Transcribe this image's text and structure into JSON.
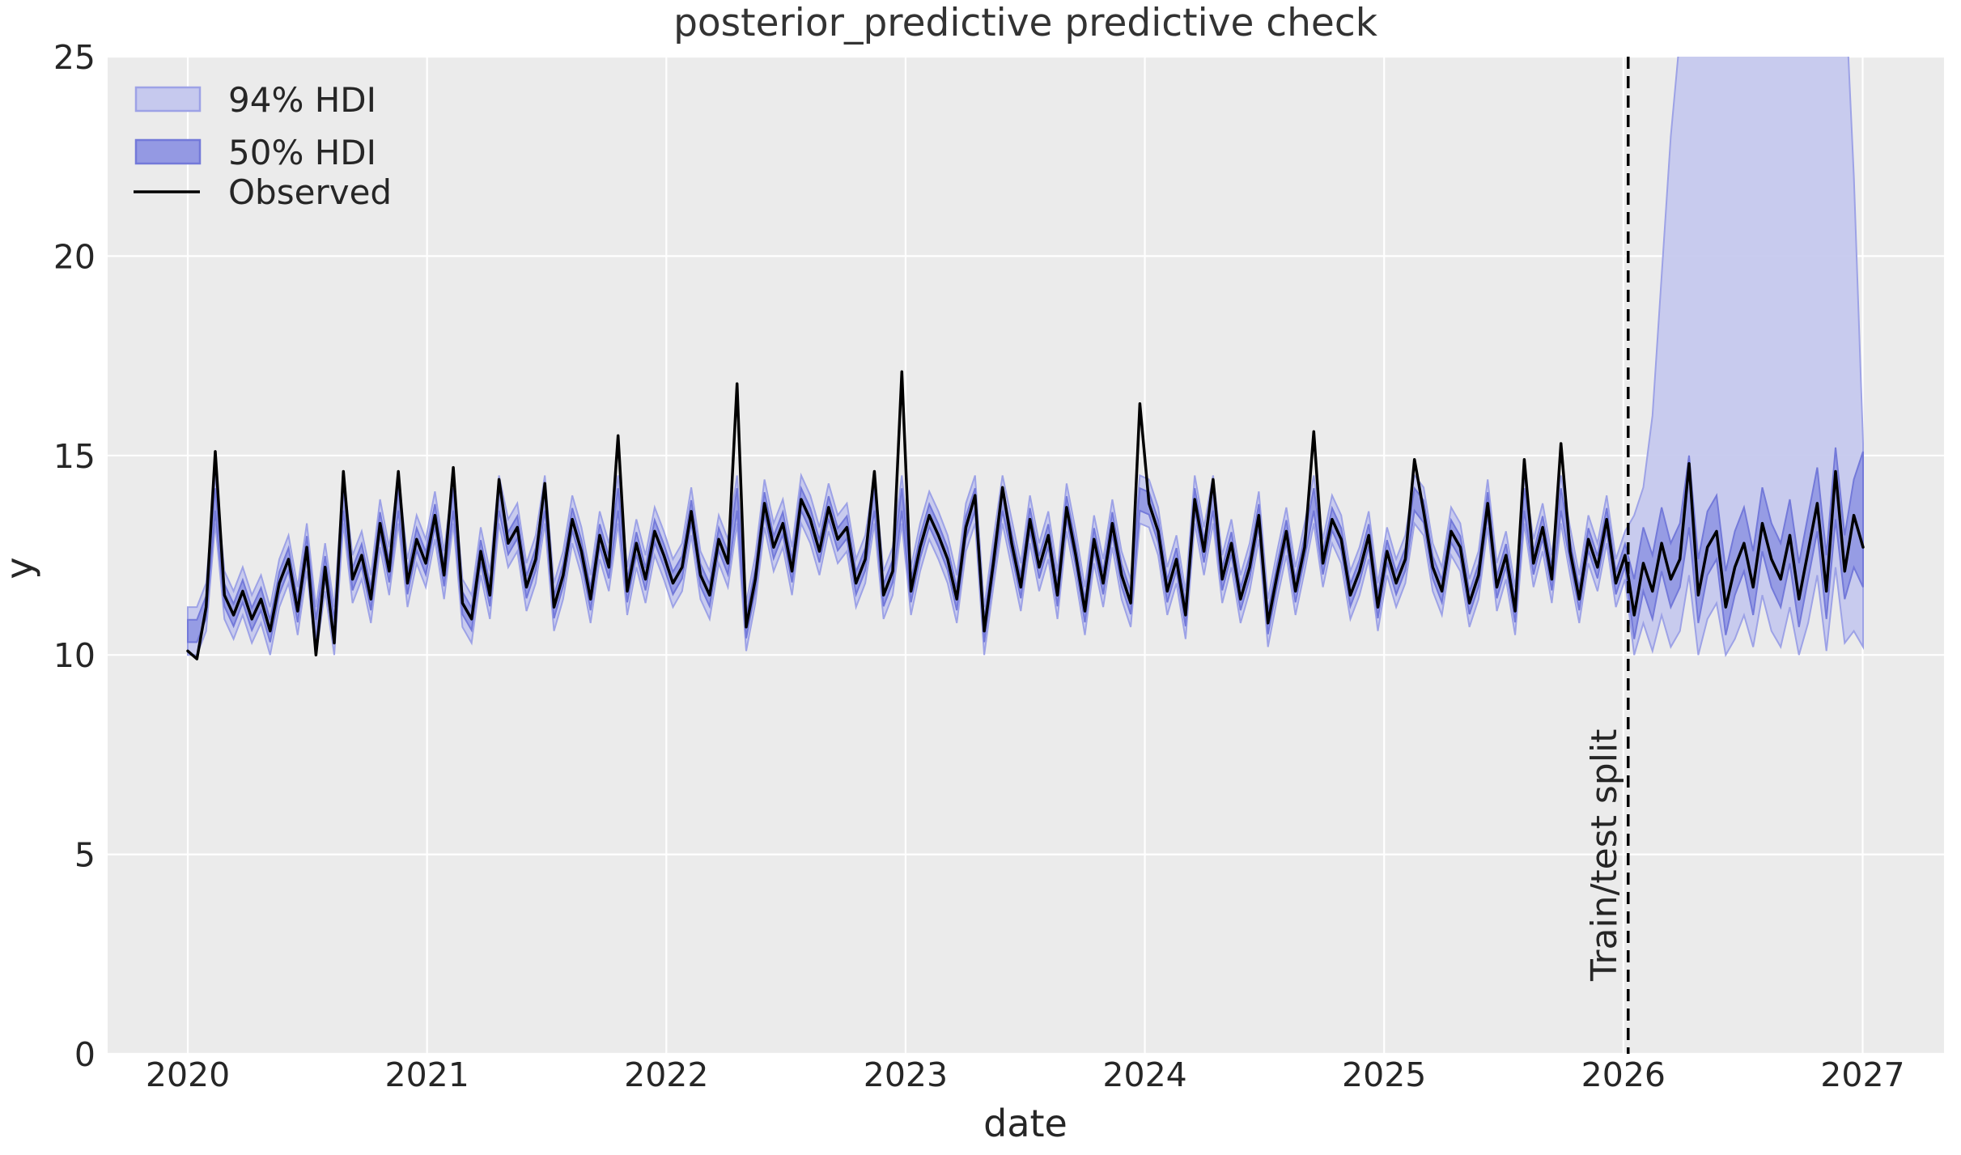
{
  "chart_data": {
    "type": "line",
    "title": "posterior_predictive predictive check",
    "xlabel": "date",
    "ylabel": "y",
    "xticks": [
      2020,
      2021,
      2022,
      2023,
      2024,
      2025,
      2026,
      2027
    ],
    "yticks": [
      0,
      5,
      10,
      15,
      20,
      25
    ],
    "ylim": [
      0,
      25
    ],
    "xlim": [
      2019.665,
      2027.34
    ],
    "grid": "on",
    "legend_position": "upper left",
    "legend": [
      {
        "label": "94% HDI"
      },
      {
        "label": "50% HDI"
      },
      {
        "label": "Observed"
      }
    ],
    "split_line": {
      "x": 2026.02,
      "label": "Train/test split",
      "style": "dashed"
    },
    "colors": {
      "axes_background": "#ebebeb",
      "grid": "#ffffff",
      "hdi94_fill": "#c6c9ee",
      "hdi94_edge": "#9da2e6",
      "hdi50_fill": "#9499e3",
      "hdi50_edge": "#7379d9",
      "observed_line": "#000000",
      "split_line": "#000000",
      "text": "#262626",
      "title_text": "#333333"
    },
    "x_start": 2020.0,
    "x_step": 0.03826,
    "observed": [
      10.1,
      9.9,
      11.2,
      15.1,
      11.5,
      11.0,
      11.6,
      10.9,
      11.4,
      10.6,
      11.8,
      12.4,
      11.1,
      12.7,
      10.0,
      12.2,
      10.3,
      14.6,
      11.9,
      12.5,
      11.4,
      13.3,
      12.1,
      14.6,
      11.8,
      12.9,
      12.3,
      13.5,
      12.0,
      14.7,
      11.3,
      10.9,
      12.6,
      11.5,
      14.4,
      12.8,
      13.2,
      11.7,
      12.4,
      14.3,
      11.2,
      12.0,
      13.4,
      12.6,
      11.4,
      13.0,
      12.2,
      15.5,
      11.6,
      12.8,
      11.9,
      13.1,
      12.5,
      11.8,
      12.2,
      13.6,
      12.0,
      11.5,
      12.9,
      12.3,
      16.8,
      10.7,
      11.9,
      13.8,
      12.7,
      13.3,
      12.1,
      13.9,
      13.4,
      12.6,
      13.7,
      12.9,
      13.2,
      11.8,
      12.4,
      14.6,
      11.5,
      12.1,
      17.1,
      11.6,
      12.7,
      13.5,
      13.0,
      12.4,
      11.4,
      13.2,
      14.0,
      10.6,
      12.3,
      14.2,
      12.8,
      11.7,
      13.4,
      12.2,
      13.0,
      11.5,
      13.7,
      12.5,
      11.1,
      12.9,
      11.8,
      13.3,
      12.0,
      11.3,
      16.3,
      13.8,
      13.1,
      11.6,
      12.4,
      11.0,
      13.9,
      12.6,
      14.4,
      11.9,
      12.8,
      11.4,
      12.2,
      13.5,
      10.8,
      12.0,
      13.1,
      11.6,
      12.7,
      15.6,
      12.3,
      13.4,
      12.9,
      11.5,
      12.1,
      13.0,
      11.2,
      12.6,
      11.8,
      12.4,
      14.9,
      13.6,
      12.2,
      11.6,
      13.1,
      12.7,
      11.3,
      12.0,
      13.8,
      11.7,
      12.5,
      11.1,
      14.9,
      12.3,
      13.2,
      11.9,
      15.3,
      12.6,
      11.4,
      12.9,
      12.2,
      13.4,
      11.8,
      12.5,
      11.0,
      12.3,
      11.6,
      12.8,
      11.9,
      12.4,
      14.8,
      11.5,
      12.7,
      13.1,
      11.2,
      12.2,
      12.8,
      11.7,
      13.3,
      12.4,
      11.9,
      13.0,
      11.4,
      12.6,
      13.8,
      11.6,
      14.6,
      12.1,
      13.5,
      12.7
    ],
    "band_model": {
      "note": "in-sample HDI bands follow a smoothed center of the observed series",
      "center_clip": [
        10.6,
        13.9
      ],
      "hdi50_halfwidth": 0.28,
      "hdi94_halfwidth": 0.6,
      "forecast_start_index": 158
    },
    "forecast_bands": {
      "hdi94_hi": [
        13.5,
        14.2,
        16.0,
        19.5,
        23.0,
        25.5,
        27.0,
        27.5,
        27.4,
        27.6,
        27.5,
        27.3,
        27.6,
        27.4,
        27.5,
        27.6,
        27.4,
        27.5,
        27.3,
        27.6,
        27.5,
        27.4,
        27.6,
        27.0,
        22.0,
        15.3
      ],
      "hdi94_lo": [
        10.0,
        10.8,
        10.1,
        11.0,
        10.2,
        10.6,
        12.0,
        10.0,
        10.9,
        11.3,
        10.0,
        10.4,
        11.0,
        10.2,
        11.5,
        10.6,
        10.2,
        11.2,
        10.0,
        10.8,
        12.0,
        10.1,
        12.2,
        10.3,
        10.6,
        10.2
      ],
      "hdi50_hi": [
        11.9,
        13.2,
        12.5,
        13.7,
        12.8,
        13.3,
        15.0,
        12.4,
        13.6,
        14.0,
        12.1,
        13.1,
        13.7,
        12.6,
        14.2,
        13.3,
        12.8,
        13.9,
        12.3,
        13.5,
        14.7,
        12.5,
        15.2,
        13.0,
        14.4,
        15.1
      ],
      "hdi50_lo": [
        10.4,
        11.6,
        10.9,
        12.1,
        11.2,
        11.7,
        13.2,
        10.8,
        12.0,
        12.4,
        10.5,
        11.5,
        12.1,
        11.0,
        12.6,
        11.7,
        11.2,
        12.3,
        10.7,
        11.9,
        13.1,
        10.9,
        13.4,
        11.4,
        12.2,
        11.7
      ]
    }
  }
}
